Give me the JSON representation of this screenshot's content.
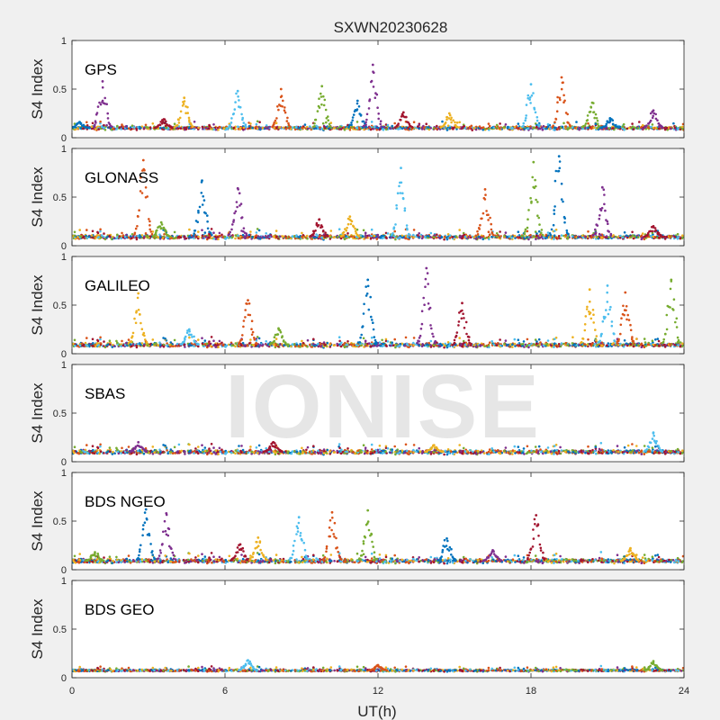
{
  "chart_data": {
    "type": "scatter",
    "title": "SXWN20230628",
    "xlabel": "UT(h)",
    "ylabel": "S4 Index",
    "xlim": [
      0,
      24
    ],
    "xticks": [
      "0",
      "6",
      "12",
      "18",
      "24"
    ],
    "ylim": [
      0,
      1
    ],
    "yticks": [
      "0",
      "0.5",
      "1"
    ],
    "grid": false,
    "series_colors": [
      "#0072BD",
      "#D95319",
      "#EDB120",
      "#7E2F8E",
      "#77AC30",
      "#4DBEEE",
      "#A2142F"
    ],
    "panels": [
      {
        "label": "GPS",
        "baseline": 0.1,
        "noise": 0.025,
        "peaks": [
          {
            "x": 0.3,
            "y": 0.16
          },
          {
            "x": 1.2,
            "y": 0.58
          },
          {
            "x": 3.6,
            "y": 0.19
          },
          {
            "x": 4.4,
            "y": 0.41
          },
          {
            "x": 6.5,
            "y": 0.48
          },
          {
            "x": 8.2,
            "y": 0.5
          },
          {
            "x": 9.8,
            "y": 0.53
          },
          {
            "x": 11.2,
            "y": 0.38
          },
          {
            "x": 11.8,
            "y": 0.75
          },
          {
            "x": 13.0,
            "y": 0.26
          },
          {
            "x": 14.8,
            "y": 0.25
          },
          {
            "x": 18.0,
            "y": 0.55
          },
          {
            "x": 19.2,
            "y": 0.62
          },
          {
            "x": 20.4,
            "y": 0.36
          },
          {
            "x": 21.1,
            "y": 0.2
          },
          {
            "x": 22.8,
            "y": 0.28
          }
        ]
      },
      {
        "label": "GLONASS",
        "baseline": 0.09,
        "noise": 0.03,
        "peaks": [
          {
            "x": 2.8,
            "y": 0.88
          },
          {
            "x": 3.5,
            "y": 0.24
          },
          {
            "x": 5.1,
            "y": 0.67
          },
          {
            "x": 6.5,
            "y": 0.59
          },
          {
            "x": 9.7,
            "y": 0.27
          },
          {
            "x": 10.9,
            "y": 0.3
          },
          {
            "x": 12.9,
            "y": 0.8
          },
          {
            "x": 16.2,
            "y": 0.58
          },
          {
            "x": 18.1,
            "y": 0.86
          },
          {
            "x": 19.1,
            "y": 0.92
          },
          {
            "x": 20.8,
            "y": 0.6
          },
          {
            "x": 22.8,
            "y": 0.2
          }
        ]
      },
      {
        "label": "GALILEO",
        "baseline": 0.09,
        "noise": 0.03,
        "peaks": [
          {
            "x": 2.6,
            "y": 0.62
          },
          {
            "x": 4.6,
            "y": 0.25
          },
          {
            "x": 6.9,
            "y": 0.55
          },
          {
            "x": 8.1,
            "y": 0.26
          },
          {
            "x": 11.6,
            "y": 0.76
          },
          {
            "x": 13.9,
            "y": 0.88
          },
          {
            "x": 15.3,
            "y": 0.52
          },
          {
            "x": 20.3,
            "y": 0.66
          },
          {
            "x": 21.0,
            "y": 0.7
          },
          {
            "x": 21.7,
            "y": 0.63
          },
          {
            "x": 23.5,
            "y": 0.76
          }
        ]
      },
      {
        "label": "SBAS",
        "baseline": 0.1,
        "noise": 0.03,
        "peaks": [
          {
            "x": 2.6,
            "y": 0.2
          },
          {
            "x": 7.9,
            "y": 0.2
          },
          {
            "x": 14.2,
            "y": 0.17
          },
          {
            "x": 22.8,
            "y": 0.3
          }
        ]
      },
      {
        "label": "BDS NGEO",
        "baseline": 0.09,
        "noise": 0.03,
        "peaks": [
          {
            "x": 0.9,
            "y": 0.18
          },
          {
            "x": 2.9,
            "y": 0.62
          },
          {
            "x": 3.7,
            "y": 0.58
          },
          {
            "x": 6.6,
            "y": 0.26
          },
          {
            "x": 7.3,
            "y": 0.33
          },
          {
            "x": 8.9,
            "y": 0.54
          },
          {
            "x": 10.2,
            "y": 0.59
          },
          {
            "x": 11.6,
            "y": 0.61
          },
          {
            "x": 14.7,
            "y": 0.32
          },
          {
            "x": 16.5,
            "y": 0.2
          },
          {
            "x": 18.2,
            "y": 0.56
          },
          {
            "x": 21.9,
            "y": 0.22
          }
        ]
      },
      {
        "label": "BDS GEO",
        "baseline": 0.075,
        "noise": 0.015,
        "peaks": [
          {
            "x": 6.9,
            "y": 0.18
          },
          {
            "x": 12.0,
            "y": 0.13
          },
          {
            "x": 22.8,
            "y": 0.17
          }
        ]
      }
    ]
  },
  "watermark": "IONISE"
}
